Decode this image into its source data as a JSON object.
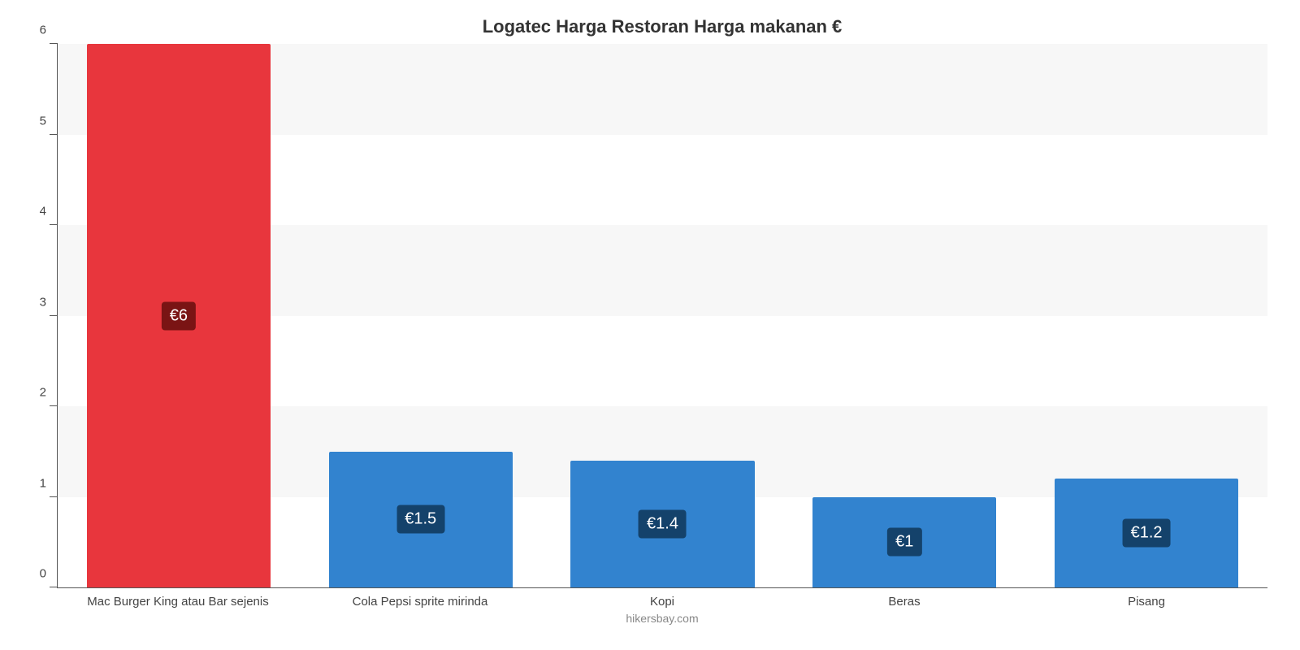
{
  "chart": {
    "type": "bar",
    "title": "Logatec Harga Restoran Harga makanan €",
    "title_fontsize": 22,
    "title_color": "#333333",
    "footer": "hikersbay.com",
    "footer_color": "#888888",
    "background_color": "#ffffff",
    "grid_band_color": "#f7f7f7",
    "axis_color": "#555555",
    "label_color": "#444444",
    "label_fontsize": 15,
    "ylim": [
      0,
      6
    ],
    "yticks": [
      0,
      1,
      2,
      3,
      4,
      5,
      6
    ],
    "bar_width_pct": 76,
    "categories": [
      "Mac Burger King atau Bar sejenis",
      "Cola Pepsi sprite mirinda",
      "Kopi",
      "Beras",
      "Pisang"
    ],
    "values": [
      6,
      1.5,
      1.4,
      1,
      1.2
    ],
    "value_labels": [
      "€6",
      "€1.5",
      "€1.4",
      "€1",
      "€1.2"
    ],
    "bar_colors": [
      "#e8363d",
      "#3283cf",
      "#3283cf",
      "#3283cf",
      "#3283cf"
    ],
    "badge_colors": [
      "#7a1414",
      "#14426b",
      "#14426b",
      "#14426b",
      "#14426b"
    ],
    "badge_fontsize": 20
  }
}
